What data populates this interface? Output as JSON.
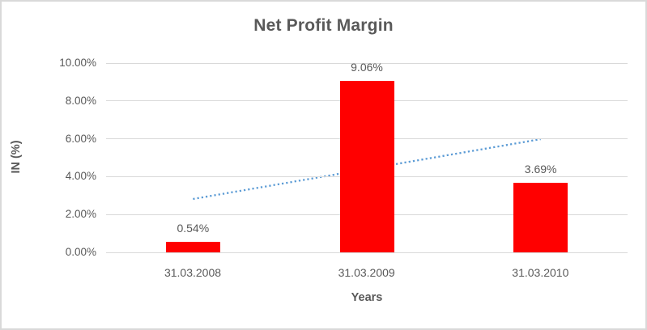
{
  "chart": {
    "background": "#ffffff",
    "border_color": "#d9d9d9",
    "text_color": "#595959",
    "gridline_color": "#d9d9d9"
  },
  "chart_data": {
    "type": "bar",
    "title": "Net Profit Margin",
    "xlabel": "Years",
    "ylabel": "IN (%)",
    "categories": [
      "31.03.2008",
      "31.03.2009",
      "31.03.2010"
    ],
    "values": [
      0.54,
      9.06,
      3.69
    ],
    "data_labels": [
      "0.54%",
      "9.06%",
      "3.69%"
    ],
    "ylim": [
      0,
      10
    ],
    "ytick_step": 2,
    "ytick_labels": [
      "0.00%",
      "2.00%",
      "4.00%",
      "6.00%",
      "8.00%",
      "10.00%"
    ],
    "grid": true,
    "legend": "none",
    "bar_color": "#ff0000",
    "trendline": {
      "style": "dotted",
      "color": "#5b9bd5",
      "start_value": 2.82,
      "end_value": 5.98
    }
  }
}
